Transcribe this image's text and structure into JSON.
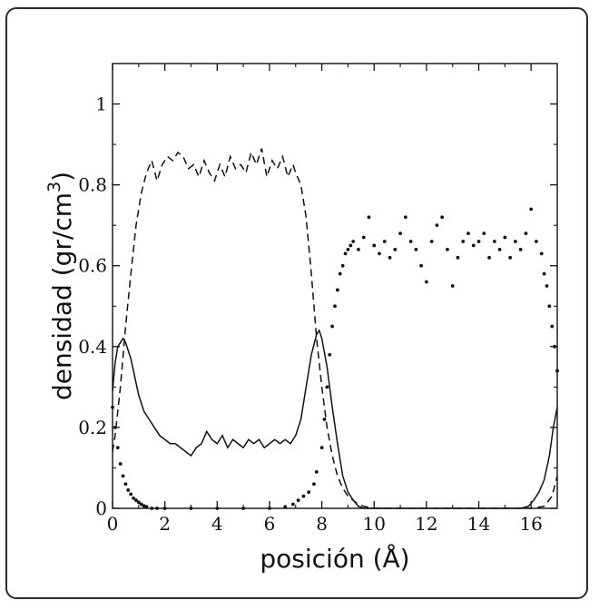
{
  "chart_data": {
    "type": "line",
    "xlabel": "posición (Å)",
    "ylabel": "densidad (gr/cm",
    "ylabel_superscript": "3",
    "ylabel_suffix": ")",
    "xlim": [
      0,
      17
    ],
    "ylim": [
      0,
      1.1
    ],
    "xticks": [
      0,
      2,
      4,
      6,
      8,
      10,
      12,
      14,
      16
    ],
    "yticks": [
      0,
      0.2,
      0.4,
      0.6,
      0.8,
      1
    ],
    "ytick_labels": [
      "0",
      "0.2",
      "0.4",
      "0.6",
      "0.8",
      "1"
    ],
    "grid": false,
    "legend": "none",
    "series": [
      {
        "style": "solid",
        "x": [
          0,
          0.1,
          0.2,
          0.3,
          0.4,
          0.5,
          0.6,
          0.7,
          0.8,
          0.9,
          1.0,
          1.2,
          1.4,
          1.6,
          1.8,
          2.0,
          2.2,
          2.4,
          2.6,
          2.8,
          3.0,
          3.2,
          3.4,
          3.6,
          3.8,
          4.0,
          4.2,
          4.4,
          4.6,
          4.8,
          5.0,
          5.2,
          5.4,
          5.6,
          5.8,
          6.0,
          6.2,
          6.4,
          6.6,
          6.8,
          7.0,
          7.2,
          7.4,
          7.6,
          7.8,
          7.9,
          8.0,
          8.2,
          8.4,
          8.6,
          8.8,
          9.0,
          9.2,
          9.4,
          9.6,
          10,
          11,
          12,
          13,
          14,
          15,
          15.6,
          15.9,
          16.1,
          16.3,
          16.5,
          16.7,
          16.85,
          17.0
        ],
        "y": [
          0.29,
          0.36,
          0.4,
          0.41,
          0.42,
          0.41,
          0.39,
          0.37,
          0.34,
          0.31,
          0.28,
          0.24,
          0.22,
          0.2,
          0.18,
          0.17,
          0.16,
          0.16,
          0.15,
          0.14,
          0.13,
          0.15,
          0.16,
          0.19,
          0.17,
          0.16,
          0.18,
          0.15,
          0.17,
          0.16,
          0.15,
          0.17,
          0.16,
          0.17,
          0.15,
          0.16,
          0.17,
          0.16,
          0.17,
          0.16,
          0.18,
          0.22,
          0.3,
          0.38,
          0.43,
          0.44,
          0.42,
          0.35,
          0.25,
          0.16,
          0.08,
          0.04,
          0.02,
          0.005,
          0.0,
          0.0,
          0.0,
          0.0,
          0.0,
          0.0,
          0.0,
          0.0,
          0.005,
          0.02,
          0.04,
          0.07,
          0.13,
          0.2,
          0.25
        ]
      },
      {
        "style": "dashed",
        "x": [
          0,
          0.1,
          0.3,
          0.5,
          0.7,
          0.9,
          1.1,
          1.3,
          1.5,
          1.7,
          1.9,
          2.1,
          2.3,
          2.5,
          2.7,
          2.9,
          3.1,
          3.3,
          3.5,
          3.7,
          3.9,
          4.1,
          4.3,
          4.5,
          4.7,
          4.9,
          5.1,
          5.3,
          5.5,
          5.7,
          5.9,
          6.1,
          6.3,
          6.5,
          6.7,
          6.9,
          7.0,
          7.2,
          7.4,
          7.6,
          7.8,
          8.0,
          8.2,
          8.4,
          8.6,
          8.8,
          9.0,
          9.2,
          9.4,
          9.6,
          10,
          11,
          12,
          13,
          14,
          15,
          16,
          16.5,
          16.8,
          17.0
        ],
        "y": [
          0.14,
          0.18,
          0.3,
          0.45,
          0.58,
          0.7,
          0.78,
          0.83,
          0.86,
          0.81,
          0.85,
          0.87,
          0.86,
          0.88,
          0.87,
          0.84,
          0.85,
          0.82,
          0.86,
          0.83,
          0.81,
          0.85,
          0.82,
          0.87,
          0.84,
          0.85,
          0.83,
          0.88,
          0.85,
          0.89,
          0.82,
          0.86,
          0.84,
          0.87,
          0.82,
          0.85,
          0.83,
          0.8,
          0.72,
          0.58,
          0.42,
          0.3,
          0.2,
          0.13,
          0.08,
          0.05,
          0.03,
          0.02,
          0.01,
          0.005,
          0.0,
          0.0,
          0.0,
          0.0,
          0.0,
          0.0,
          0.0,
          0.005,
          0.03,
          0.08
        ]
      },
      {
        "style": "dotted",
        "x": [
          0,
          0.1,
          0.2,
          0.3,
          0.4,
          0.5,
          0.6,
          0.7,
          0.8,
          0.9,
          1.0,
          1.1,
          1.2,
          1.3,
          1.5,
          1.7,
          2,
          3,
          4,
          5,
          6,
          6.6,
          6.9,
          7.1,
          7.3,
          7.5,
          7.7,
          7.8,
          8.0,
          8.1,
          8.2,
          8.3,
          8.4,
          8.5,
          8.6,
          8.7,
          8.8,
          8.9,
          9.0,
          9.1,
          9.2,
          9.4,
          9.6,
          9.8,
          10.0,
          10.2,
          10.4,
          10.6,
          10.8,
          11.0,
          11.2,
          11.4,
          11.6,
          11.8,
          12.0,
          12.2,
          12.4,
          12.6,
          12.8,
          13.0,
          13.2,
          13.4,
          13.6,
          13.8,
          14.0,
          14.2,
          14.4,
          14.6,
          14.8,
          15.0,
          15.2,
          15.4,
          15.6,
          15.8,
          16.0,
          16.2,
          16.4,
          16.5,
          16.6,
          16.7,
          16.8,
          16.9,
          17.0
        ],
        "y": [
          0.25,
          0.2,
          0.15,
          0.11,
          0.08,
          0.06,
          0.045,
          0.035,
          0.025,
          0.02,
          0.015,
          0.01,
          0.006,
          0.004,
          0.0,
          0.0,
          0.0,
          0.0,
          0.0,
          0.0,
          0.0,
          0.004,
          0.01,
          0.02,
          0.03,
          0.04,
          0.06,
          0.09,
          0.15,
          0.22,
          0.3,
          0.38,
          0.45,
          0.5,
          0.54,
          0.58,
          0.6,
          0.63,
          0.64,
          0.65,
          0.66,
          0.64,
          0.67,
          0.72,
          0.65,
          0.63,
          0.66,
          0.62,
          0.64,
          0.68,
          0.72,
          0.66,
          0.64,
          0.6,
          0.56,
          0.66,
          0.7,
          0.72,
          0.64,
          0.55,
          0.62,
          0.66,
          0.68,
          0.65,
          0.66,
          0.68,
          0.62,
          0.66,
          0.64,
          0.67,
          0.62,
          0.66,
          0.64,
          0.68,
          0.74,
          0.66,
          0.63,
          0.58,
          0.55,
          0.5,
          0.45,
          0.4,
          0.34
        ]
      }
    ]
  }
}
